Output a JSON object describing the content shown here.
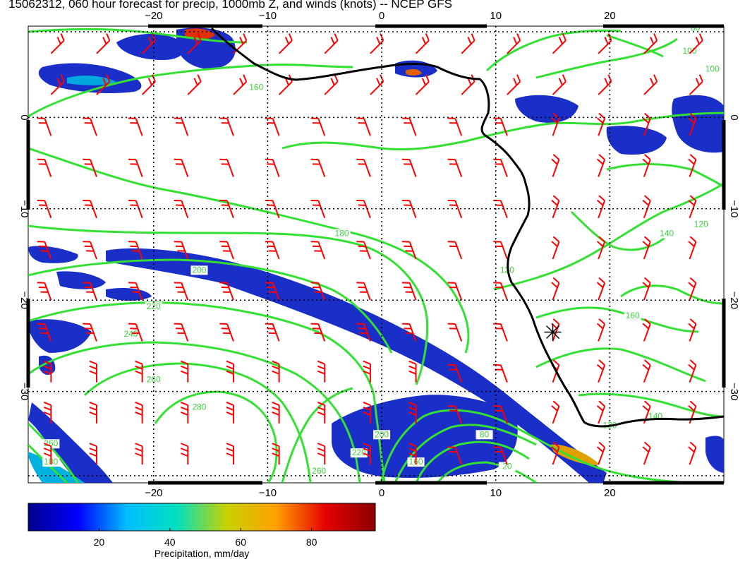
{
  "title": "15062312, 060 hour forecast for precip, 1000mb Z, and winds (knots) -- NCEP GFS",
  "map": {
    "lon_ticks": [
      {
        "lon": -20,
        "label": "−20"
      },
      {
        "lon": -10,
        "label": "−10"
      },
      {
        "lon": 0,
        "label": "0"
      },
      {
        "lon": 10,
        "label": "10"
      },
      {
        "lon": 20,
        "label": "20"
      }
    ],
    "lat_ticks": [
      {
        "lat": 0,
        "label": "0"
      },
      {
        "lat": -10,
        "label": "−10"
      },
      {
        "lat": -20,
        "label": "−20"
      },
      {
        "lat": -30,
        "label": "−30"
      }
    ],
    "contour_labels": [
      {
        "text": "160",
        "lon": -11,
        "lat": 3
      },
      {
        "text": "180",
        "lon": -3.5,
        "lat": -13
      },
      {
        "text": "200",
        "lon": -16,
        "lat": -17
      },
      {
        "text": "220",
        "lon": -20,
        "lat": -21
      },
      {
        "text": "240",
        "lon": -22,
        "lat": -24
      },
      {
        "text": "260",
        "lon": -20,
        "lat": -29
      },
      {
        "text": "280",
        "lon": -16,
        "lat": -32
      },
      {
        "text": "260",
        "lon": -5.5,
        "lat": -39
      },
      {
        "text": "220",
        "lon": -2,
        "lat": -37
      },
      {
        "text": "200",
        "lon": 0,
        "lat": -35
      },
      {
        "text": "160",
        "lon": 3,
        "lat": -38
      },
      {
        "text": "80",
        "lon": 9,
        "lat": -35
      },
      {
        "text": "20",
        "lon": 11,
        "lat": -38.5
      },
      {
        "text": "120",
        "lon": 28,
        "lat": -12
      },
      {
        "text": "140",
        "lon": 25,
        "lat": -13
      },
      {
        "text": "100",
        "lon": 29,
        "lat": 5
      },
      {
        "text": "100",
        "lon": 27,
        "lat": 7
      },
      {
        "text": "80",
        "lon": 27.5,
        "lat": 9.5
      },
      {
        "text": "120",
        "lon": 11,
        "lat": -17
      },
      {
        "text": "140",
        "lon": 24,
        "lat": -33
      },
      {
        "text": "120",
        "lon": 20,
        "lat": -34
      },
      {
        "text": "160",
        "lon": 22,
        "lat": -22
      },
      {
        "text": "260",
        "lon": -29,
        "lat": -36
      },
      {
        "text": "180",
        "lon": -29,
        "lat": -38
      }
    ],
    "marker": {
      "name": "station-marker",
      "lon": 15,
      "lat": -23.5
    }
  },
  "colorbar": {
    "label": "Precipitation, mm/day",
    "min": 0,
    "max": 98,
    "ticks": [
      {
        "value": 20,
        "label": "20"
      },
      {
        "value": 40,
        "label": "40"
      },
      {
        "value": 60,
        "label": "60"
      },
      {
        "value": 80,
        "label": "80"
      }
    ],
    "colors": [
      "#00008b",
      "#0000ff",
      "#00bfff",
      "#00e0c0",
      "#c8d200",
      "#ffa000",
      "#e60000",
      "#8b0000"
    ]
  },
  "colors": {
    "contour": "#33e033",
    "wind_barb": "#ff0000",
    "coastline": "#000000",
    "grid": "#000000"
  }
}
